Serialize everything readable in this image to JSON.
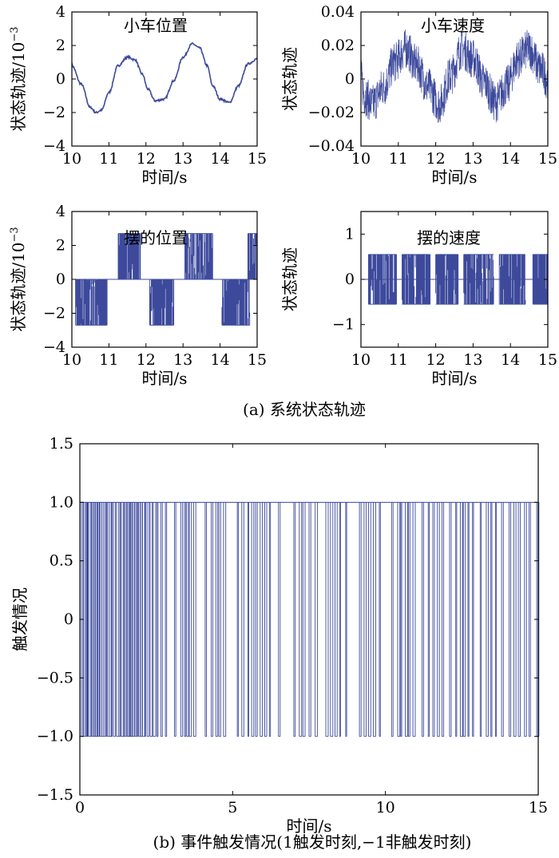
{
  "figure": {
    "caption_a": "(a) 系统状态轨迹",
    "caption_b": "(b) 事件触发情况(1触发时刻,−1非触发时刻)"
  },
  "colors": {
    "series": "#3d4a9c",
    "axis": "#000000"
  },
  "chart_data": [
    {
      "id": "cart-position",
      "type": "line",
      "title": "小车位置",
      "xlabel": "时间/s",
      "ylabel": "状态轨迹/10",
      "ylabel_exp": "−3",
      "xlim": [
        10,
        15
      ],
      "ylim": [
        -4,
        4
      ],
      "xticks": [
        10,
        11,
        12,
        13,
        14,
        15
      ],
      "yticks": [
        {
          "v": -4,
          "t": "−4"
        },
        {
          "v": -2,
          "t": "−2"
        },
        {
          "v": 0,
          "t": "0"
        },
        {
          "v": 2,
          "t": "2"
        },
        {
          "v": 4,
          "t": "4"
        }
      ],
      "x": [
        10.0,
        10.25,
        10.5,
        10.65,
        10.8,
        11.0,
        11.25,
        11.5,
        11.7,
        11.9,
        12.05,
        12.25,
        12.5,
        12.75,
        13.0,
        13.25,
        13.45,
        13.65,
        13.8,
        14.0,
        14.25,
        14.5,
        14.75,
        15.0
      ],
      "y": [
        0.8,
        -0.3,
        -1.7,
        -2.0,
        -1.85,
        -0.8,
        0.8,
        1.3,
        1.15,
        0.3,
        -0.6,
        -1.3,
        -1.2,
        -0.1,
        1.3,
        2.1,
        1.85,
        0.8,
        -0.4,
        -1.2,
        -1.4,
        -0.4,
        0.9,
        1.2
      ]
    },
    {
      "id": "cart-velocity",
      "type": "line",
      "title": "小车速度",
      "xlabel": "时间/s",
      "ylabel": "状态轨迹",
      "xlim": [
        10,
        15
      ],
      "ylim": [
        -0.04,
        0.04
      ],
      "xticks": [
        10,
        11,
        12,
        13,
        14,
        15
      ],
      "yticks": [
        {
          "v": -0.04,
          "t": "−0.04"
        },
        {
          "v": -0.02,
          "t": "−0.02"
        },
        {
          "v": 0,
          "t": "0"
        },
        {
          "v": 0.02,
          "t": "0.02"
        },
        {
          "v": 0.04,
          "t": "0.04"
        }
      ],
      "x": [
        10.0,
        10.1,
        10.3,
        10.6,
        10.9,
        11.2,
        11.5,
        11.8,
        12.1,
        12.4,
        12.7,
        13.0,
        13.3,
        13.6,
        13.9,
        14.2,
        14.5,
        14.8,
        15.0
      ],
      "y": [
        0.0,
        -0.01,
        -0.015,
        -0.005,
        0.01,
        0.018,
        0.008,
        -0.005,
        -0.015,
        0.002,
        0.018,
        0.012,
        -0.002,
        -0.014,
        -0.004,
        0.012,
        0.018,
        0.006,
        0.0
      ],
      "noise": 0.012
    },
    {
      "id": "pendulum-position",
      "type": "line",
      "title": "摆的位置",
      "xlabel": "时间/s",
      "ylabel": "状态轨迹/10",
      "ylabel_exp": "−3",
      "xlim": [
        10,
        15
      ],
      "ylim": [
        -4,
        4
      ],
      "xticks": [
        10,
        11,
        12,
        13,
        14,
        15
      ],
      "yticks": [
        {
          "v": -4,
          "t": "−4"
        },
        {
          "v": -2,
          "t": "−2"
        },
        {
          "v": 0,
          "t": "0"
        },
        {
          "v": 2,
          "t": "2"
        },
        {
          "v": 4,
          "t": "4"
        }
      ],
      "levels": [
        {
          "x0": 10.1,
          "x1": 10.95,
          "low": -2.7,
          "high": 0
        },
        {
          "x0": 11.25,
          "x1": 11.85,
          "low": 0,
          "high": 2.7
        },
        {
          "x0": 12.1,
          "x1": 12.75,
          "low": -2.7,
          "high": 0
        },
        {
          "x0": 13.05,
          "x1": 13.8,
          "low": 0,
          "high": 2.7
        },
        {
          "x0": 14.05,
          "x1": 14.8,
          "low": -2.7,
          "high": 0
        },
        {
          "x0": 14.75,
          "x1": 15.0,
          "low": 0,
          "high": 2.7
        }
      ]
    },
    {
      "id": "pendulum-velocity",
      "type": "line",
      "title": "摆的速度",
      "xlabel": "时间/s",
      "ylabel": "状态轨迹",
      "xlim": [
        10,
        15
      ],
      "ylim": [
        -1.5,
        1.5
      ],
      "xticks": [
        10,
        11,
        12,
        13,
        14,
        15
      ],
      "yticks": [
        {
          "v": -1,
          "t": "−1"
        },
        {
          "v": 0,
          "t": "0"
        },
        {
          "v": 1,
          "t": "1"
        }
      ],
      "levels": [
        {
          "x0": 10.2,
          "x1": 10.95,
          "low": -0.55,
          "high": 0.55
        },
        {
          "x0": 11.1,
          "x1": 11.85,
          "low": -0.55,
          "high": 0.55
        },
        {
          "x0": 12.0,
          "x1": 12.6,
          "low": -0.55,
          "high": 0.55
        },
        {
          "x0": 12.75,
          "x1": 13.55,
          "low": -0.55,
          "high": 0.55
        },
        {
          "x0": 13.7,
          "x1": 14.4,
          "low": -0.55,
          "high": 0.55
        },
        {
          "x0": 14.6,
          "x1": 15.0,
          "low": -0.55,
          "high": 0.55
        }
      ]
    },
    {
      "id": "event-trigger",
      "type": "line",
      "xlabel": "时间/s",
      "ylabel": "触发情况",
      "xlim": [
        0,
        15
      ],
      "ylim": [
        -1.5,
        1.5
      ],
      "xticks": [
        0,
        5,
        10,
        15
      ],
      "yticks": [
        {
          "v": -1.5,
          "t": "−1.5"
        },
        {
          "v": -1.0,
          "t": "−1.0"
        },
        {
          "v": -0.5,
          "t": "−0.5"
        },
        {
          "v": 0,
          "t": "0"
        },
        {
          "v": 0.5,
          "t": "0.5"
        },
        {
          "v": 1.0,
          "t": "1.0"
        },
        {
          "v": 1.5,
          "t": "1.5"
        }
      ],
      "trigger_times": [
        0.05,
        0.12,
        0.18,
        0.22,
        0.28,
        0.34,
        0.4,
        0.45,
        0.5,
        0.56,
        0.6,
        0.66,
        0.72,
        0.78,
        0.84,
        0.9,
        0.96,
        1.02,
        1.1,
        1.2,
        1.28,
        1.35,
        1.42,
        1.48,
        1.55,
        1.6,
        1.66,
        1.72,
        1.8,
        1.86,
        1.92,
        1.98,
        2.05,
        2.12,
        2.2,
        2.3,
        2.4,
        2.52,
        2.65,
        2.8,
        3.1,
        3.3,
        3.42,
        3.5,
        3.58,
        3.72,
        4.1,
        4.3,
        4.45,
        4.55,
        4.7,
        5.15,
        5.3,
        5.5,
        5.62,
        5.75,
        5.9,
        6.05,
        6.2,
        6.5,
        7.0,
        7.18,
        7.3,
        7.5,
        7.7,
        8.05,
        8.2,
        8.35,
        8.5,
        8.7,
        9.15,
        9.3,
        9.45,
        9.6,
        9.8,
        10.2,
        10.4,
        10.5,
        10.65,
        10.75,
        10.9,
        11.2,
        11.4,
        11.55,
        11.7,
        11.85,
        12.1,
        12.3,
        12.45,
        12.55,
        12.7,
        12.85,
        13.1,
        13.3,
        13.45,
        13.6,
        13.8,
        14.05,
        14.2,
        14.35,
        14.55,
        14.7,
        14.95
      ]
    }
  ]
}
